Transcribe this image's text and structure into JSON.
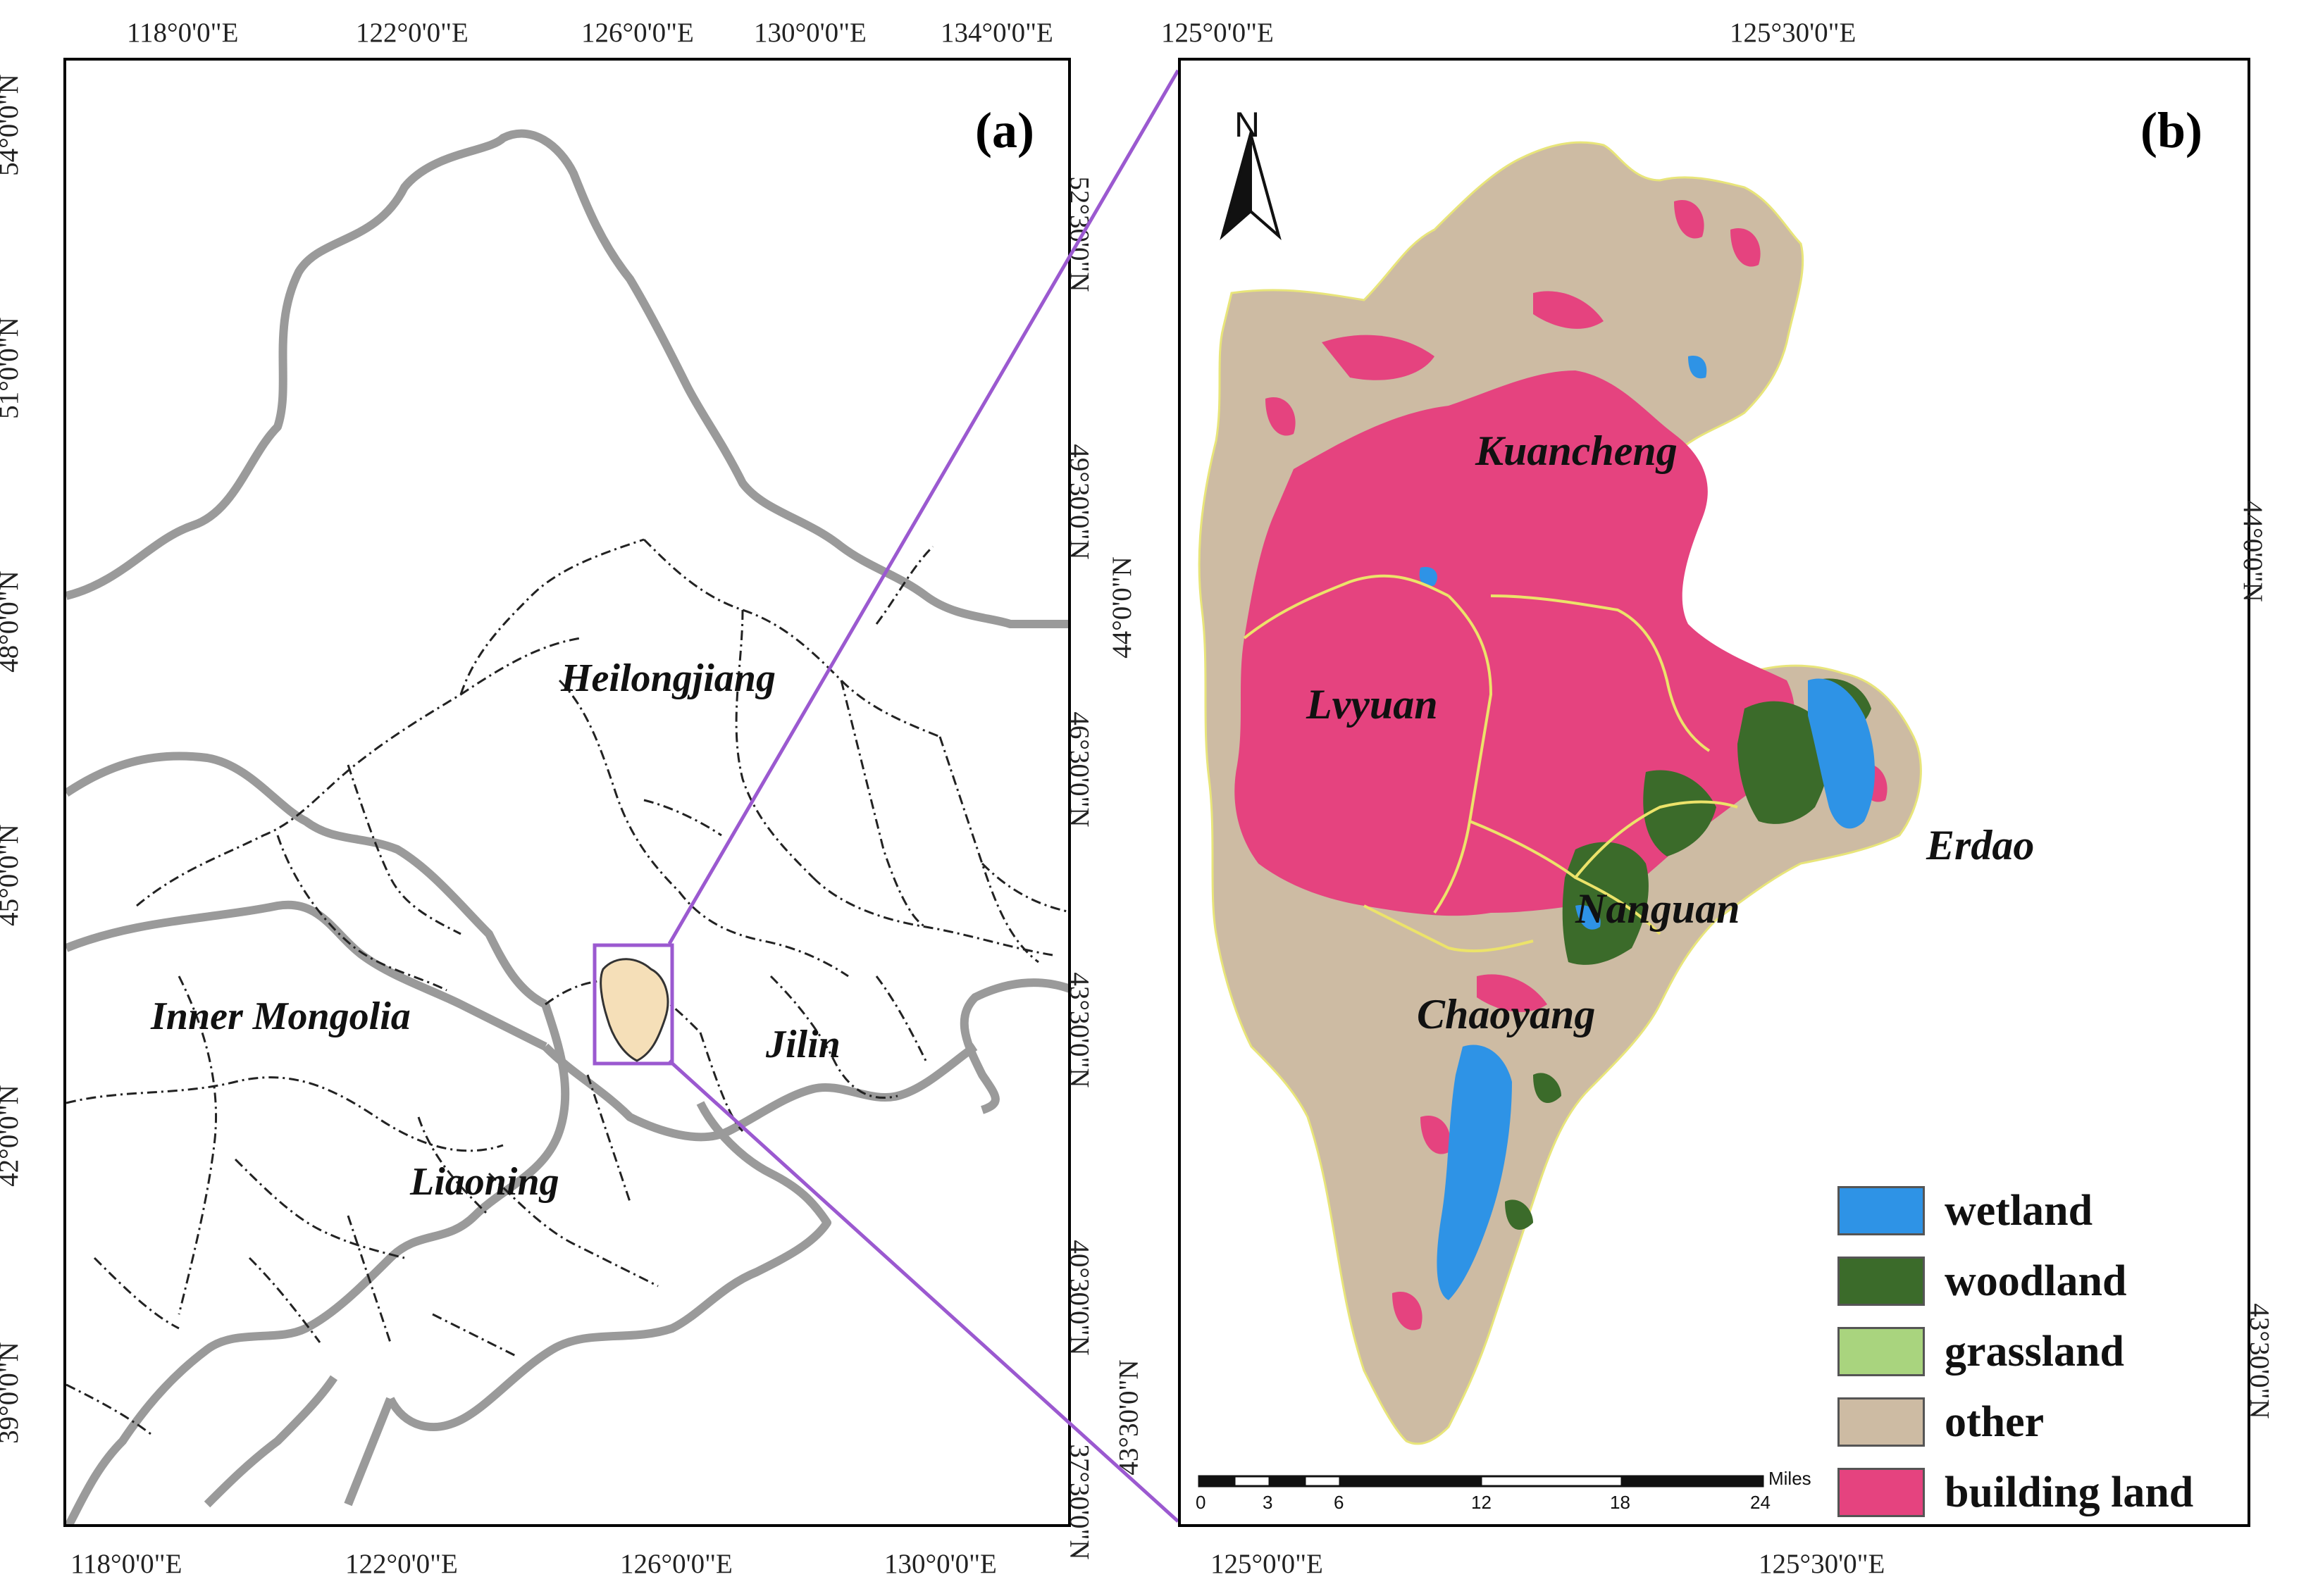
{
  "panel_a": {
    "label": "(a)",
    "top_ticks": [
      "118°0'0\"E",
      "122°0'0\"E",
      "126°0'0\"E",
      "130°0'0\"E",
      "134°0'0\"E"
    ],
    "bottom_ticks": [
      "118°0'0\"E",
      "122°0'0\"E",
      "126°0'0\"E",
      "130°0'0\"E"
    ],
    "left_ticks": [
      "54°0'0\"N",
      "51°0'0\"N",
      "48°0'0\"N",
      "45°0'0\"N",
      "42°0'0\"N",
      "39°0'0\"N"
    ],
    "right_ticks": [
      "52°30'0\"N",
      "49°30'0\"N",
      "46°30'0\"N",
      "43°30'0\"N",
      "40°30'0\"N",
      "37°30'0\"N"
    ],
    "places": [
      "Heilongjiang",
      "Inner Mongolia",
      "Jilin",
      "Liaoning"
    ]
  },
  "panel_b": {
    "label": "(b)",
    "top_ticks": [
      "125°0'0\"E",
      "125°30'0\"E"
    ],
    "bottom_ticks": [
      "125°0'0\"E",
      "125°30'0\"E"
    ],
    "left_ticks": [
      "44°0'0\"N",
      "43°30'0\"N"
    ],
    "right_ticks": [
      "44°0'0\"N",
      "43°30'0\"N"
    ],
    "places": [
      "Kuancheng",
      "Lvyuan",
      "Erdao",
      "Nanguan",
      "Chaoyang"
    ],
    "north": "N",
    "scale": {
      "ticks": [
        "0",
        "3",
        "6",
        "12",
        "18",
        "24"
      ],
      "unit": "Miles"
    }
  },
  "legend": [
    {
      "label": "wetland",
      "color": "#2e93e6"
    },
    {
      "label": "woodland",
      "color": "#3b6b2a"
    },
    {
      "label": "grassland",
      "color": "#a9d47e"
    },
    {
      "label": "other",
      "color": "#cdbba3"
    },
    {
      "label": "building land",
      "color": "#e5437f"
    }
  ],
  "colors": {
    "connector": "#9b59d0",
    "province_border": "#9a9a9a",
    "highlight": "#f5dfb8"
  }
}
